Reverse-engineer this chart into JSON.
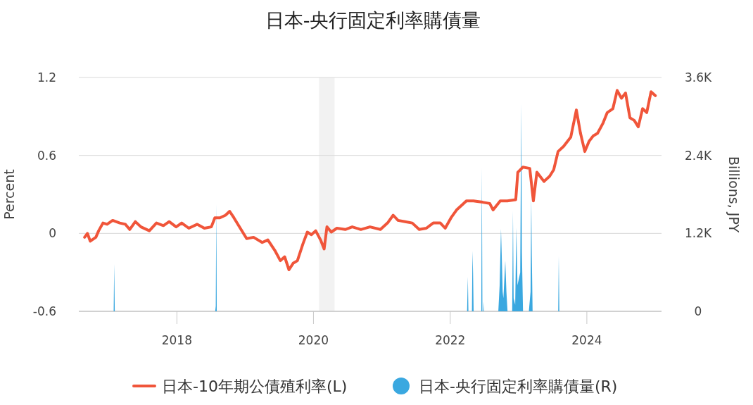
{
  "chart_data": {
    "type": "line",
    "title": "日本-央行固定利率購債量",
    "ylabel": "Percent",
    "y2label": "Billions, JPY",
    "xlim": [
      "2016-07-26",
      "2025-02-03"
    ],
    "xticks": [
      "2018",
      "2020",
      "2022",
      "2024"
    ],
    "ylim": [
      -0.6,
      1.2
    ],
    "yticks": [
      -0.6,
      0,
      0.6,
      1.2
    ],
    "y2lim": [
      0,
      3600
    ],
    "y2ticks": [
      0,
      {
        "value": 1200,
        "label": "1.2K"
      },
      {
        "value": 2400,
        "label": "2.4K"
      },
      {
        "value": 3600,
        "label": "3.6K"
      }
    ],
    "grid": "y",
    "legend": "bottom",
    "bands": [
      {
        "axis": "x",
        "from": "2020-01-31",
        "to": "2020-04-23",
        "color": "#f2f2f2"
      }
    ],
    "series": [
      {
        "name": "日本-10年期公債殖利率(L)",
        "color": "#f0553a",
        "x": [
          "2016-08-26",
          "2016-09-10",
          "2016-09-25",
          "2016-10-25",
          "2016-11-09",
          "2016-12-02",
          "2016-12-24",
          "2017-01-23",
          "2017-03-02",
          "2017-04-01",
          "2017-04-24",
          "2017-05-24",
          "2017-06-23",
          "2017-08-07",
          "2017-09-14",
          "2017-10-21",
          "2017-11-21",
          "2017-12-28",
          "2018-01-27",
          "2018-03-06",
          "2018-04-20",
          "2018-05-28",
          "2018-07-04",
          "2018-07-23",
          "2018-08-19",
          "2018-09-18",
          "2018-10-10",
          "2018-11-02",
          "2018-12-10",
          "2019-01-09",
          "2019-02-15",
          "2019-04-02",
          "2019-05-02",
          "2019-06-08",
          "2019-07-08",
          "2019-07-31",
          "2019-08-23",
          "2019-09-14",
          "2019-10-07",
          "2019-11-06",
          "2019-11-29",
          "2019-12-21",
          "2020-01-13",
          "2020-02-08",
          "2020-02-27",
          "2020-03-13",
          "2020-04-05",
          "2020-05-05",
          "2020-06-19",
          "2020-07-26",
          "2020-09-10",
          "2020-10-29",
          "2020-12-24",
          "2021-01-31",
          "2021-03-02",
          "2021-03-28",
          "2021-05-05",
          "2021-06-12",
          "2021-07-19",
          "2021-08-26",
          "2021-10-02",
          "2021-11-09",
          "2021-12-05",
          "2022-01-05",
          "2022-02-04",
          "2022-03-06",
          "2022-03-28",
          "2022-05-05",
          "2022-06-23",
          "2022-07-31",
          "2022-08-18",
          "2022-09-25",
          "2022-11-02",
          "2022-12-17",
          "2022-12-28",
          "2023-01-24",
          "2023-03-02",
          "2023-03-21",
          "2023-04-09",
          "2023-05-17",
          "2023-06-16",
          "2023-07-08",
          "2023-07-31",
          "2023-08-30",
          "2023-10-07",
          "2023-11-06",
          "2023-11-28",
          "2023-12-21",
          "2024-01-13",
          "2024-02-04",
          "2024-02-27",
          "2024-03-28",
          "2024-04-19",
          "2024-05-19",
          "2024-06-11",
          "2024-07-04",
          "2024-07-26",
          "2024-08-18",
          "2024-09-10",
          "2024-10-02",
          "2024-10-25",
          "2024-11-16",
          "2024-12-09",
          "2025-01-01"
        ],
        "values": [
          -0.03,
          0.0,
          -0.06,
          -0.03,
          0.02,
          0.08,
          0.07,
          0.1,
          0.08,
          0.07,
          0.03,
          0.09,
          0.05,
          0.02,
          0.08,
          0.06,
          0.09,
          0.05,
          0.08,
          0.04,
          0.07,
          0.04,
          0.05,
          0.12,
          0.12,
          0.14,
          0.17,
          0.12,
          0.03,
          -0.04,
          -0.03,
          -0.07,
          -0.05,
          -0.13,
          -0.21,
          -0.18,
          -0.28,
          -0.23,
          -0.21,
          -0.08,
          0.01,
          -0.01,
          0.02,
          -0.05,
          -0.12,
          0.05,
          0.01,
          0.04,
          0.03,
          0.05,
          0.03,
          0.05,
          0.03,
          0.08,
          0.14,
          0.1,
          0.09,
          0.08,
          0.03,
          0.04,
          0.08,
          0.08,
          0.04,
          0.12,
          0.18,
          0.22,
          0.25,
          0.25,
          0.24,
          0.23,
          0.18,
          0.25,
          0.25,
          0.26,
          0.47,
          0.51,
          0.5,
          0.25,
          0.47,
          0.4,
          0.44,
          0.49,
          0.63,
          0.67,
          0.74,
          0.95,
          0.77,
          0.63,
          0.71,
          0.75,
          0.77,
          0.85,
          0.93,
          0.96,
          1.1,
          1.04,
          1.08,
          0.89,
          0.87,
          0.82,
          0.96,
          0.93,
          1.09,
          1.06
        ]
      },
      {
        "name": "日本-央行固定利率購債量(R)",
        "type": "area",
        "axis": "y2",
        "color": "#3aa8e0",
        "x": [
          "2016-08-25",
          "2017-01-28",
          "2017-01-31",
          "2017-02-03",
          "2018-07-25",
          "2018-07-28",
          "2018-07-31",
          "2018-08-02",
          "2022-04-01",
          "2022-04-05",
          "2022-04-08",
          "2022-04-27",
          "2022-04-30",
          "2022-05-03",
          "2022-05-06",
          "2022-06-16",
          "2022-06-19",
          "2022-06-22",
          "2022-06-27",
          "2022-06-29",
          "2022-07-01",
          "2022-09-15",
          "2022-09-22",
          "2022-09-29",
          "2022-10-03",
          "2022-10-08",
          "2022-10-12",
          "2022-10-22",
          "2022-10-28",
          "2022-11-03",
          "2022-11-28",
          "2022-12-02",
          "2022-12-06",
          "2022-12-14",
          "2022-12-20",
          "2022-12-26",
          "2023-01-10",
          "2023-01-16",
          "2023-01-19",
          "2023-01-25",
          "2023-02-25",
          "2023-03-06",
          "2023-03-10",
          "2023-03-13",
          "2023-03-17",
          "2023-08-01",
          "2023-08-04",
          "2023-08-07",
          "2025-01-01"
        ],
        "values": [
          0,
          0,
          730,
          0,
          0,
          80,
          1650,
          0,
          0,
          530,
          0,
          0,
          930,
          600,
          0,
          0,
          2210,
          0,
          0,
          150,
          0,
          0,
          400,
          1270,
          890,
          300,
          200,
          780,
          300,
          0,
          0,
          1540,
          200,
          100,
          1290,
          400,
          600,
          3200,
          910,
          0,
          0,
          300,
          1770,
          860,
          0,
          0,
          850,
          0,
          0
        ]
      }
    ]
  }
}
